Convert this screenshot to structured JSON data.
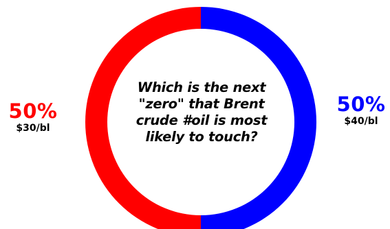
{
  "chart_data": {
    "type": "pie",
    "variant": "donut",
    "title": "Which is the next \"zero\" that Brent crude #oil is most likely to touch?",
    "title_lines": [
      "Which is the next",
      "\"zero\" that Brent",
      "crude #oil is most",
      "likely to touch?"
    ],
    "slices": [
      {
        "label": "$40/bl",
        "value": 50,
        "value_label": "50%",
        "color": "#0000ff",
        "side": "right"
      },
      {
        "label": "$30/bl",
        "value": 50,
        "value_label": "50%",
        "color": "#ff0000",
        "side": "left"
      }
    ]
  }
}
